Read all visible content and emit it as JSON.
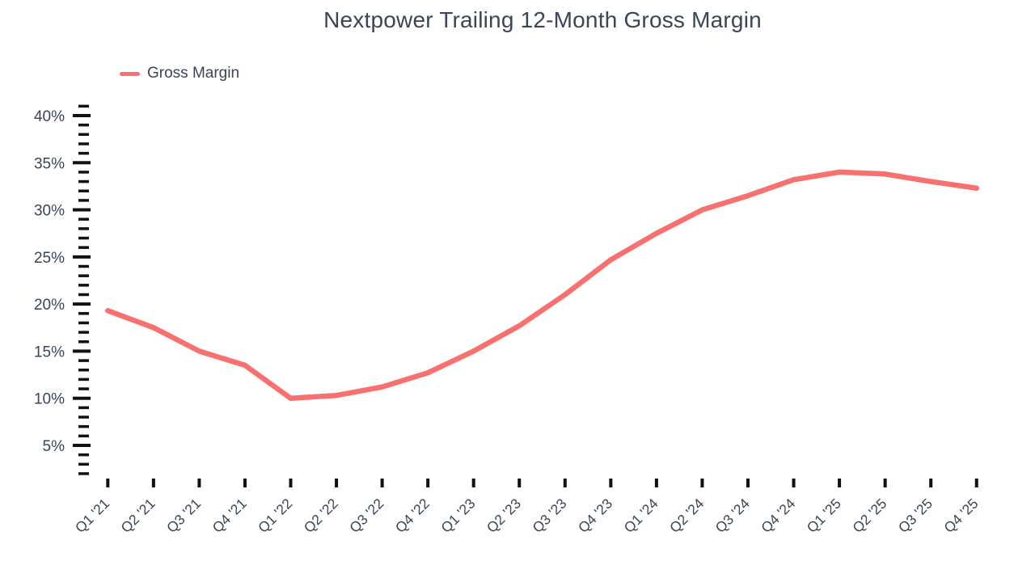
{
  "page": {
    "background": "#ffffff"
  },
  "header": {
    "title": "Nextpower Trailing 12-Month Gross Margin"
  },
  "legend": {
    "label": "Gross Margin"
  },
  "colors": {
    "line": "#f87171",
    "text": "#3b4554",
    "tick": "#111111",
    "background": "#ffffff"
  },
  "chart_data": {
    "type": "line",
    "title": "Nextpower Trailing 12-Month Gross Margin",
    "categories": [
      "Q1 '21",
      "Q2 '21",
      "Q3 '21",
      "Q4 '21",
      "Q1 '22",
      "Q2 '22",
      "Q3 '22",
      "Q4 '22",
      "Q1 '23",
      "Q2 '23",
      "Q3 '23",
      "Q4 '23",
      "Q1 '24",
      "Q2 '24",
      "Q3 '24",
      "Q4 '24",
      "Q1 '25",
      "Q2 '25",
      "Q3 '25",
      "Q4 '25"
    ],
    "series": [
      {
        "name": "Gross Margin",
        "color": "#f87171",
        "values": [
          19.3,
          17.5,
          15.0,
          13.5,
          10.0,
          10.3,
          11.2,
          12.7,
          15.0,
          17.7,
          21.0,
          24.7,
          27.5,
          30.0,
          31.5,
          33.2,
          34.0,
          33.8,
          33.0,
          32.3
        ]
      }
    ],
    "unit": "%",
    "xlabel": "",
    "ylabel": "",
    "y_major_ticks": [
      5,
      10,
      15,
      20,
      25,
      30,
      35,
      40
    ],
    "y_tick_labels": [
      "5%",
      "10%",
      "15%",
      "20%",
      "25%",
      "30%",
      "35%",
      "40%"
    ],
    "y_minor_step": 1,
    "ylim": [
      2,
      41
    ],
    "grid": false,
    "legend_position": "top-left",
    "x_label_rotation": -45
  },
  "layout_note": "line chart, dashed tick axes, no gridlines"
}
